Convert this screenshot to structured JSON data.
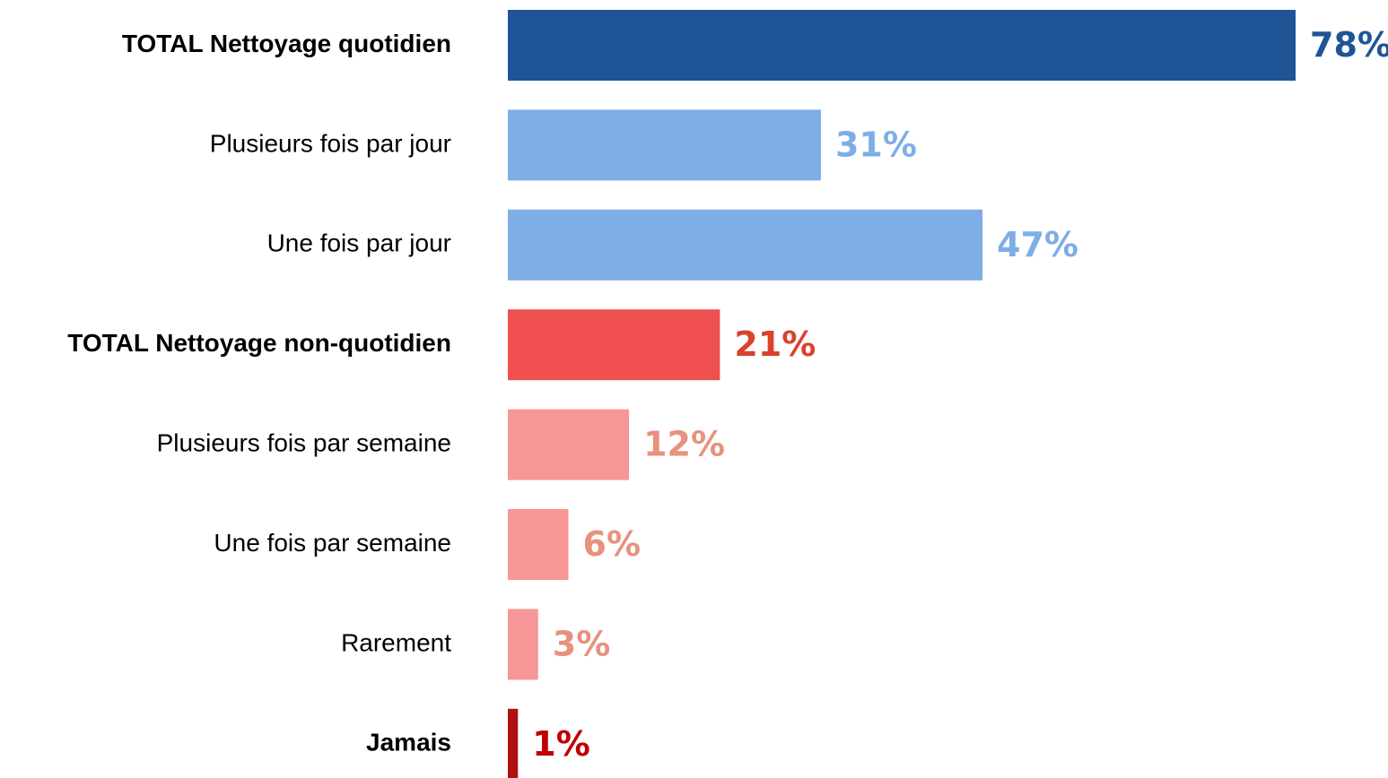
{
  "chart_data": {
    "type": "bar",
    "orientation": "horizontal",
    "categories": [
      "TOTAL Nettoyage quotidien",
      "Plusieurs fois par jour",
      "Une fois par jour",
      "TOTAL Nettoyage non-quotidien",
      "Plusieurs fois par semaine",
      "Une fois par semaine",
      "Rarement",
      "Jamais"
    ],
    "values": [
      78,
      31,
      47,
      21,
      12,
      6,
      3,
      1
    ],
    "value_labels": [
      "78%",
      "31%",
      "47%",
      "21%",
      "12%",
      "6%",
      "3%",
      "1%"
    ],
    "colors": [
      "#1f5597",
      "#7faee6",
      "#7faee6",
      "#f05050",
      "#f79696",
      "#f79696",
      "#f79696",
      "#b01010"
    ],
    "label_colors": [
      "#1f5597",
      "#7faee6",
      "#7faee6",
      "#d9432a",
      "#e8917f",
      "#e8917f",
      "#e8917f",
      "#c00000"
    ],
    "bold": [
      true,
      false,
      false,
      true,
      false,
      false,
      false,
      true
    ]
  }
}
